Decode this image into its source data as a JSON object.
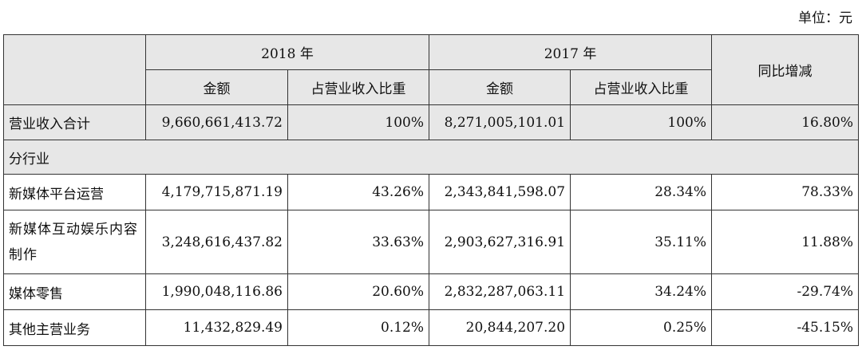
{
  "unit": "单位：元",
  "header": {
    "year_2018": "2018 年",
    "year_2017": "2017 年",
    "amount": "金额",
    "ratio": "占营业收入比重",
    "yoy": "同比增减"
  },
  "total": {
    "label": "营业收入合计",
    "amount_2018": "9,660,661,413.72",
    "ratio_2018": "100%",
    "amount_2017": "8,271,005,101.01",
    "ratio_2017": "100%",
    "yoy": "16.80%"
  },
  "section": {
    "label": "分行业"
  },
  "rows": [
    {
      "label": "新媒体平台运营",
      "amount_2018": "4,179,715,871.19",
      "ratio_2018": "43.26%",
      "amount_2017": "2,343,841,598.07",
      "ratio_2017": "28.34%",
      "yoy": "78.33%"
    },
    {
      "label": "新媒体互动娱乐内容制作",
      "amount_2018": "3,248,616,437.82",
      "ratio_2018": "33.63%",
      "amount_2017": "2,903,627,316.91",
      "ratio_2017": "35.11%",
      "yoy": "11.88%"
    },
    {
      "label": "媒体零售",
      "amount_2018": "1,990,048,116.86",
      "ratio_2018": "20.60%",
      "amount_2017": "2,832,287,063.11",
      "ratio_2017": "34.24%",
      "yoy": "-29.74%"
    },
    {
      "label": "其他主营业务",
      "amount_2018": "11,432,829.49",
      "ratio_2018": "0.12%",
      "amount_2017": "20,844,207.20",
      "ratio_2017": "0.25%",
      "yoy": "-45.15%"
    }
  ]
}
